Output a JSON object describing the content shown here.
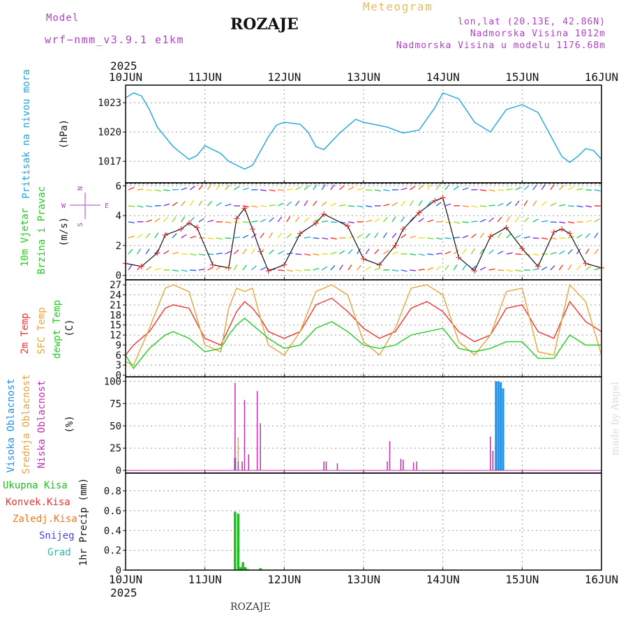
{
  "header": {
    "model_label": "Model",
    "model_name": "wrf−nmm_v3.9.1 e1km",
    "title": "ROZAJE",
    "product": "Meteogram",
    "lonlat": "lon,lat (20.13E, 42.86N)",
    "altitude": "Nadmorska Visina 1012m",
    "model_altitude": "Nadmorska Visina u modelu 1176.68m",
    "footer": "ROZAJE",
    "credit": "made by Angel"
  },
  "colors": {
    "pressure": "#1ba6e0",
    "temp2m": "#ee3333",
    "sfc_temp": "#e3a63a",
    "dewpoint": "#22cc22",
    "cloud_high": "#1e90e8",
    "cloud_mid": "#e3a63a",
    "cloud_low": "#c030b0",
    "precip_total": "#22bb22",
    "header_purple": "#b040c8",
    "product": "#e8b860"
  },
  "chart_data": [
    {
      "id": "pressure",
      "type": "line",
      "ylabel": [
        "Pritisak na nivou mora",
        "(hPa)"
      ],
      "yticks": [
        1017,
        1020,
        1023
      ],
      "ylim": [
        1014.8,
        1024.8
      ],
      "series": [
        {
          "x": [
            0,
            0.1,
            0.2,
            0.3,
            0.4,
            0.6,
            0.8,
            0.9,
            1.0,
            1.2,
            1.3,
            1.5,
            1.6,
            1.8,
            1.9,
            2.0,
            2.2,
            2.3,
            2.4,
            2.5,
            2.7,
            2.9,
            3.0,
            3.3,
            3.5,
            3.7,
            3.9,
            4.0,
            4.2,
            4.4,
            4.6,
            4.8,
            5.0,
            5.2,
            5.4,
            5.5,
            5.6,
            5.7,
            5.8,
            5.9,
            6.0
          ],
          "y": [
            1023.5,
            1024,
            1023.7,
            1022.3,
            1020.5,
            1018.5,
            1017.2,
            1017.6,
            1018.6,
            1017.8,
            1017.0,
            1016.2,
            1016.6,
            1019.5,
            1020.7,
            1021.0,
            1020.8,
            1020.0,
            1018.5,
            1018.2,
            1019.9,
            1021.3,
            1021.0,
            1020.5,
            1019.9,
            1020.2,
            1022.5,
            1024.0,
            1023.4,
            1021.0,
            1020.0,
            1022.3,
            1022.8,
            1022.0,
            1019.0,
            1017.5,
            1016.9,
            1017.5,
            1018.3,
            1018.1,
            1017.2
          ]
        }
      ]
    },
    {
      "id": "wind",
      "type": "line",
      "ylabel": [
        "10m Vjetar",
        "Brzina i Pravac",
        "(m/s)"
      ],
      "compass": [
        "N",
        "S",
        "W",
        "E"
      ],
      "yticks": [
        0,
        2,
        4,
        6
      ],
      "ylim": [
        -0.3,
        6.2
      ],
      "series": [
        {
          "x": [
            0,
            0.2,
            0.4,
            0.5,
            0.7,
            0.8,
            0.9,
            1.1,
            1.3,
            1.4,
            1.5,
            1.6,
            1.7,
            1.8,
            2.0,
            2.2,
            2.4,
            2.5,
            2.8,
            3.0,
            3.2,
            3.4,
            3.5,
            3.7,
            3.9,
            4.0,
            4.2,
            4.4,
            4.6,
            4.8,
            5.0,
            5.2,
            5.4,
            5.5,
            5.6,
            5.8,
            6.0
          ],
          "y": [
            0.8,
            0.6,
            1.5,
            2.7,
            3.1,
            3.5,
            3.2,
            0.7,
            0.5,
            3.8,
            4.5,
            3.1,
            1.6,
            0.3,
            0.7,
            2.8,
            3.5,
            4.1,
            3.3,
            1.1,
            0.7,
            2.0,
            3.1,
            4.2,
            5.0,
            5.2,
            1.2,
            0.3,
            2.6,
            3.2,
            1.8,
            0.6,
            2.9,
            3.1,
            2.8,
            0.8,
            0.5
          ]
        }
      ]
    },
    {
      "id": "temperature",
      "type": "line",
      "ylabel": [
        "2m Temp",
        "SFC Temp",
        "dewpt Temp",
        "(C)"
      ],
      "yticks": [
        0,
        3,
        6,
        9,
        12,
        15,
        18,
        21,
        24,
        27
      ],
      "ylim": [
        -0.5,
        28.5
      ],
      "series": [
        {
          "name": "2m Temp",
          "x": [
            0,
            0.1,
            0.3,
            0.5,
            0.6,
            0.8,
            1.0,
            1.2,
            1.3,
            1.4,
            1.5,
            1.6,
            1.7,
            1.8,
            2.0,
            2.2,
            2.4,
            2.6,
            2.8,
            3.0,
            3.2,
            3.4,
            3.6,
            3.8,
            4.0,
            4.2,
            4.4,
            4.6,
            4.8,
            5.0,
            5.2,
            5.4,
            5.6,
            5.8,
            6.0
          ],
          "y": [
            6,
            9,
            13,
            20,
            21,
            20,
            11,
            9,
            14,
            19,
            22,
            20,
            17,
            13,
            11,
            13,
            21,
            23,
            19,
            14,
            11,
            13,
            20,
            22,
            19,
            13,
            10,
            12,
            20,
            21,
            13,
            11,
            22,
            16,
            13
          ]
        },
        {
          "name": "SFC Temp",
          "x": [
            0,
            0.1,
            0.3,
            0.5,
            0.6,
            0.8,
            1.0,
            1.2,
            1.3,
            1.4,
            1.5,
            1.6,
            1.7,
            1.8,
            2.0,
            2.2,
            2.4,
            2.6,
            2.8,
            3.0,
            3.2,
            3.4,
            3.6,
            3.8,
            4.0,
            4.2,
            4.4,
            4.6,
            4.8,
            5.0,
            5.2,
            5.4,
            5.6,
            5.8,
            6.0
          ],
          "y": [
            4,
            3,
            14,
            26,
            27,
            25,
            9,
            7,
            20,
            26,
            25,
            26,
            17,
            9,
            6,
            13,
            25,
            27,
            24,
            10,
            6,
            14,
            26,
            27,
            24,
            10,
            6,
            12,
            25,
            26,
            7,
            6,
            27,
            22,
            6
          ]
        },
        {
          "name": "dewpt Temp",
          "x": [
            0,
            0.1,
            0.3,
            0.5,
            0.6,
            0.8,
            1.0,
            1.2,
            1.3,
            1.4,
            1.5,
            1.6,
            1.7,
            1.8,
            2.0,
            2.2,
            2.4,
            2.6,
            2.8,
            3.0,
            3.2,
            3.4,
            3.6,
            3.8,
            4.0,
            4.2,
            4.4,
            4.6,
            4.8,
            5.0,
            5.2,
            5.4,
            5.6,
            5.8,
            6.0
          ],
          "y": [
            6,
            2,
            8,
            12,
            13,
            11,
            7,
            8,
            12,
            15,
            17,
            15,
            13,
            11,
            8,
            9,
            14,
            16,
            13,
            9,
            8,
            9,
            12,
            13,
            14,
            8,
            7,
            8,
            10,
            10,
            5,
            5,
            12,
            9,
            9
          ]
        }
      ]
    },
    {
      "id": "clouds",
      "type": "bar",
      "ylabel": [
        "Visoka Oblacnost",
        "Srednja Oblacnost",
        "Niska Oblacnost",
        "(%)"
      ],
      "yticks": [
        0,
        25,
        50,
        75,
        100
      ],
      "ylim": [
        -3,
        105
      ],
      "series": [
        {
          "name": "Visoka Oblacnost",
          "x": [
            1.38,
            4.67,
            4.7,
            4.73,
            4.76
          ],
          "y": [
            14,
            100,
            100,
            99,
            92
          ]
        },
        {
          "name": "Srednja Oblacnost",
          "x": [
            1.42,
            1.47
          ],
          "y": [
            37,
            10
          ]
        },
        {
          "name": "Niska Oblacnost",
          "x": [
            1.38,
            1.42,
            1.47,
            1.5,
            1.55,
            1.66,
            1.7,
            2.5,
            2.53,
            2.67,
            3.3,
            3.33,
            3.47,
            3.5,
            3.63,
            3.67,
            4.6,
            4.63
          ],
          "y": [
            98,
            10,
            10,
            79,
            18,
            89,
            53,
            10,
            10,
            8,
            10,
            33,
            13,
            12,
            9,
            10,
            38,
            22
          ]
        }
      ]
    },
    {
      "id": "precip",
      "type": "bar",
      "ylabel": [
        "1hr Precip (mm)"
      ],
      "legend": [
        "Ukupna Kisa",
        "Konvek.Kisa",
        "Zaledj.Kisa",
        "Snijeg",
        "Grad"
      ],
      "legend_colors": [
        "#22bb22",
        "#ee3333",
        "#ee7722",
        "#4444dd",
        "#22bbaa"
      ],
      "yticks": [
        0,
        0.2,
        0.4,
        0.6,
        0.8
      ],
      "ylim": [
        0,
        0.98
      ],
      "series": [
        {
          "name": "Ukupna Kisa",
          "x": [
            1.38,
            1.42,
            1.45,
            1.48,
            1.51,
            1.54,
            1.7
          ],
          "y": [
            0.59,
            0.57,
            0.03,
            0.08,
            0.03,
            0.01,
            0.02
          ]
        }
      ]
    }
  ],
  "x_axis": {
    "ticks": [
      "10JUN",
      "11JUN",
      "12JUN",
      "13JUN",
      "14JUN",
      "15JUN",
      "16JUN"
    ],
    "year": "2025"
  }
}
